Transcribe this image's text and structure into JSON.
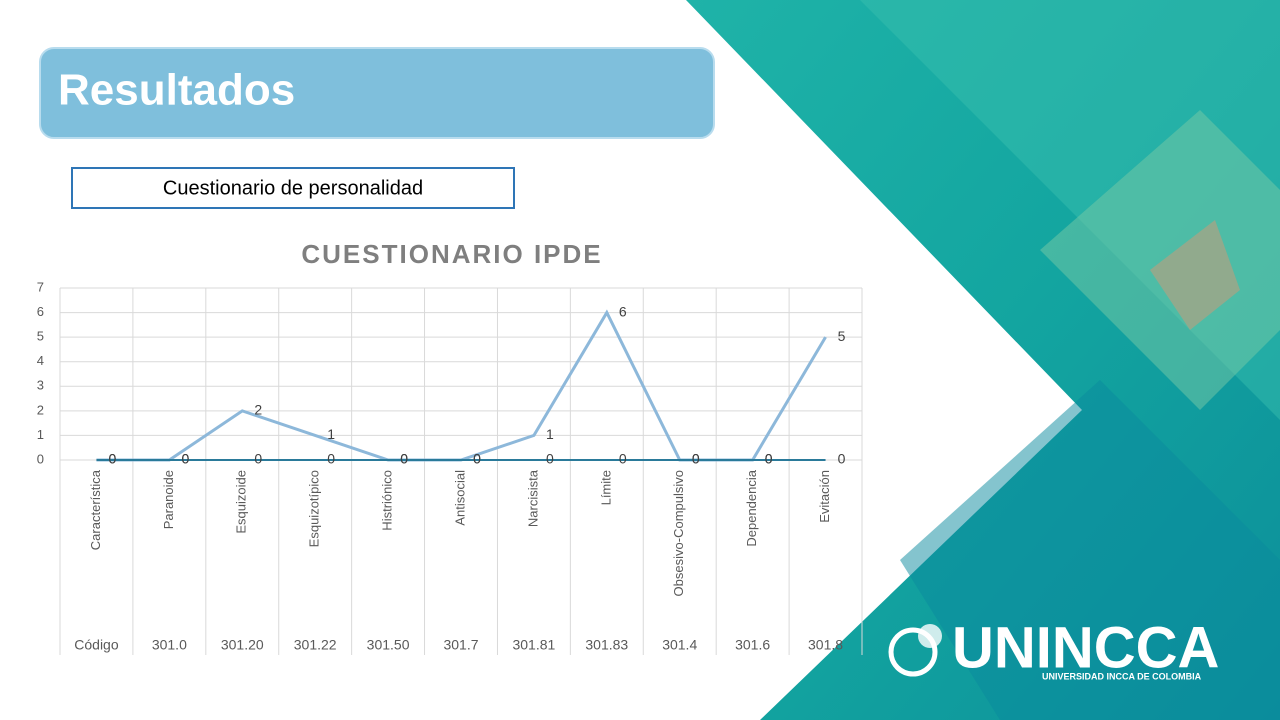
{
  "header": {
    "title": "Resultados",
    "subtitle": "Cuestionario de personalidad"
  },
  "chart_data": {
    "type": "line",
    "title": "CUESTIONARIO IPDE",
    "categories": [
      "Característica",
      "Paranoide",
      "Esquizoide",
      "Esquizotípico",
      "Histriónico",
      "Antisocial",
      "Narcisista",
      "Límite",
      "Obsesivo-Compulsivo",
      "Dependencia",
      "Evitación"
    ],
    "codes": [
      "Código",
      "301.0",
      "301.20",
      "301.22",
      "301.50",
      "301.7",
      "301.81",
      "301.83",
      "301.4",
      "301.6",
      "301.8"
    ],
    "series": [
      {
        "color": "#8db8da",
        "values": [
          0,
          0,
          2,
          1,
          0,
          0,
          1,
          6,
          0,
          0,
          5
        ]
      },
      {
        "color": "#2a7a9a",
        "values": [
          0,
          0,
          0,
          0,
          0,
          0,
          0,
          0,
          0,
          0,
          0
        ]
      }
    ],
    "ylim": [
      0,
      7
    ],
    "yticks": [
      0,
      1,
      2,
      3,
      4,
      5,
      6,
      7
    ],
    "grid": true
  },
  "logo": {
    "name": "UNINCCA",
    "subtitle": "UNIVERSIDAD INCCA DE COLOMBIA"
  }
}
